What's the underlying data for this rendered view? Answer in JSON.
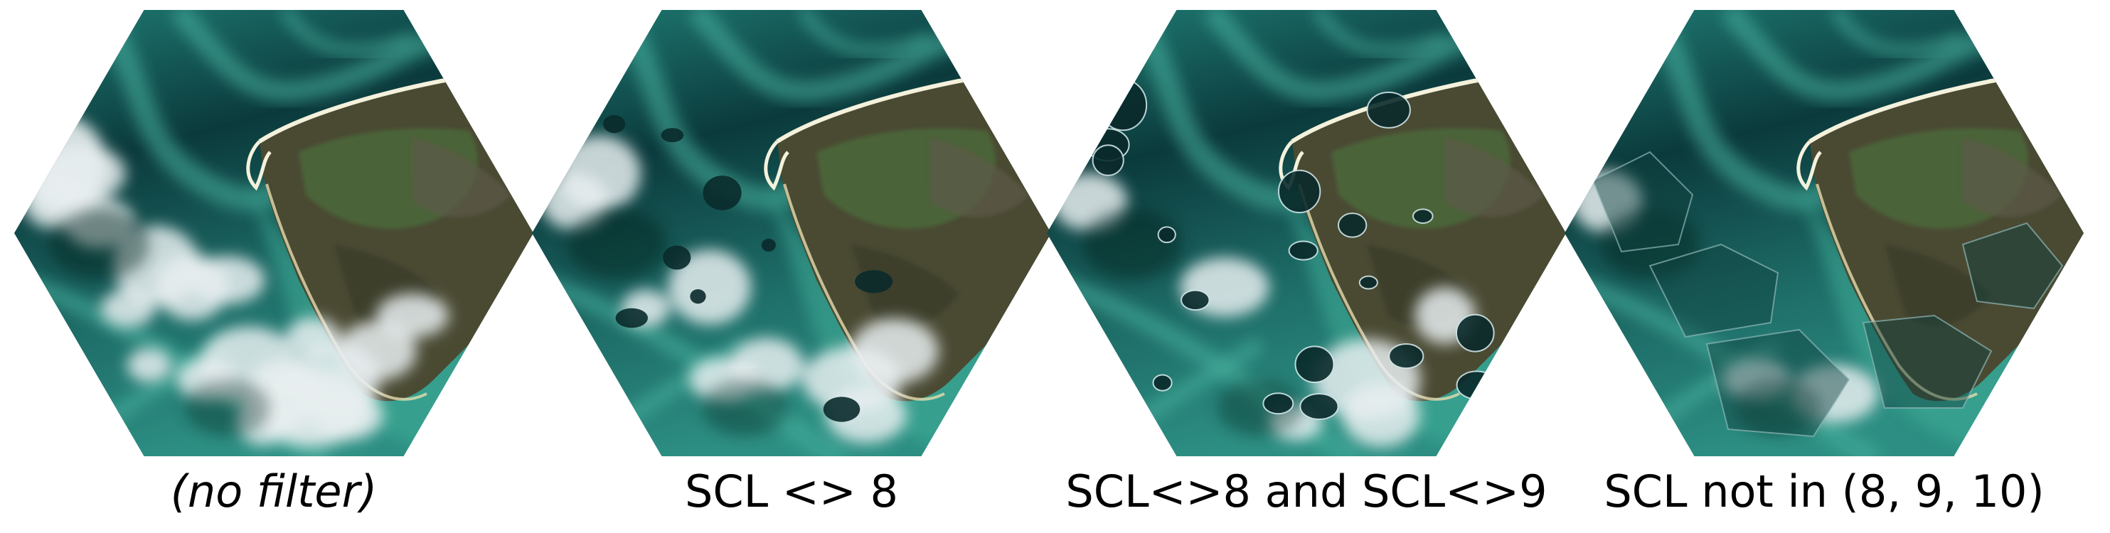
{
  "panels": [
    {
      "caption": "(no filter)",
      "italic": true,
      "cloud_level": 1.0,
      "mask_style": "none"
    },
    {
      "caption": "SCL <> 8",
      "italic": false,
      "cloud_level": 0.55,
      "mask_style": "dark-holes"
    },
    {
      "caption": "SCL<>8 and SCL<>9",
      "italic": false,
      "cloud_level": 0.3,
      "mask_style": "outlined-holes"
    },
    {
      "caption": "SCL not in (8, 9, 10)",
      "italic": false,
      "cloud_level": 0.12,
      "mask_style": "outlined-regions"
    }
  ],
  "colors": {
    "deep_water": "#0b3a3c",
    "shallow_water": "#2d8f83",
    "sand_shallows": "#49b3a0",
    "land": "#4a4a33",
    "land_green": "#4c6a3a",
    "cloud": "#e8eef0",
    "beach": "#f4f1dc"
  }
}
